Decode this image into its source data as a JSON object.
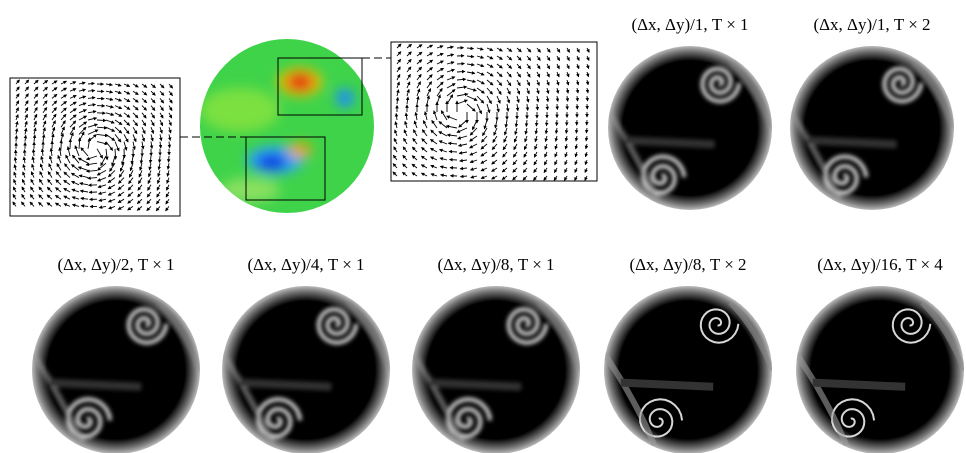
{
  "top_row": {
    "panels": [
      {
        "caption": "(Δx, Δy)/1, T × 1"
      },
      {
        "caption": "(Δx, Δy)/1, T × 2"
      }
    ]
  },
  "bottom_row": {
    "panels": [
      {
        "caption": "(Δx, Δy)/2, T × 1"
      },
      {
        "caption": "(Δx, Δy)/4, T × 1"
      },
      {
        "caption": "(Δx, Δy)/8, T × 1"
      },
      {
        "caption": "(Δx, Δy)/8, T × 2"
      },
      {
        "caption": "(Δx, Δy)/16, T × 4"
      }
    ]
  }
}
